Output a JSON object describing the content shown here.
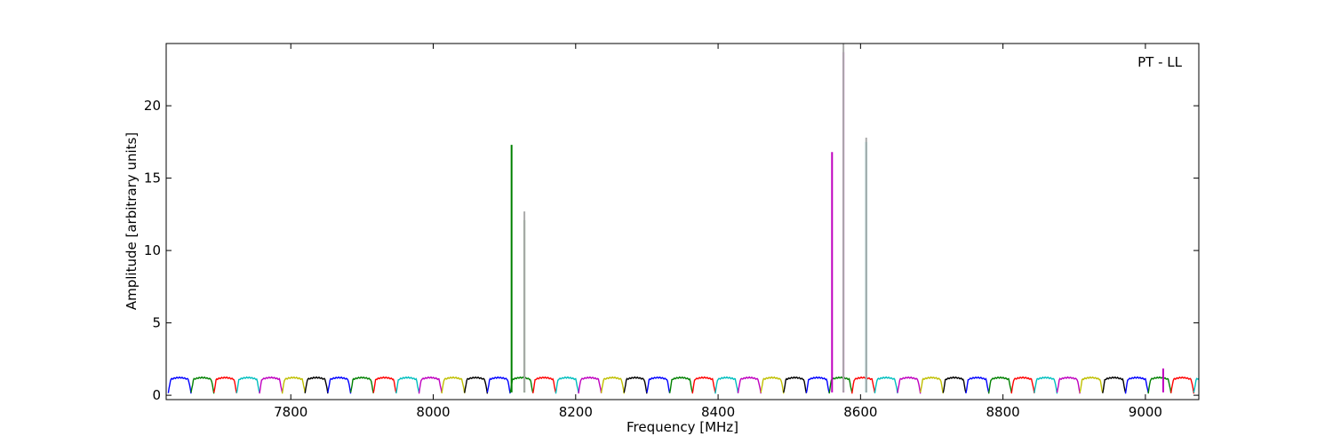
{
  "chart_data": {
    "type": "line",
    "xlabel": "Frequency [MHz]",
    "ylabel": "Amplitude [arbitrary units]",
    "annotation": "PT - LL",
    "annotation_position": "top-right",
    "xlim": [
      7625,
      9075
    ],
    "ylim": [
      -0.3,
      24.3
    ],
    "x_ticks": [
      7800,
      8000,
      8200,
      8400,
      8600,
      8800,
      9000
    ],
    "x_tick_labels": [
      "7800",
      "8000",
      "8200",
      "8400",
      "8600",
      "8800",
      "9000"
    ],
    "y_ticks": [
      0,
      5,
      10,
      15,
      20
    ],
    "y_tick_labels": [
      "0",
      "5",
      "10",
      "15",
      "20"
    ],
    "grid": false,
    "legend": "none",
    "channel_width_mhz": 32,
    "first_channel_start_mhz": 7628,
    "channel_colors": [
      "#0000ff",
      "#008000",
      "#ff0000",
      "#00bfbf",
      "#bf00bf",
      "#bfbf00",
      "#000000"
    ],
    "channel_peak_amplitude": 1.2,
    "channel_edge_dip_amplitude": 0.15,
    "spikes": [
      {
        "x": 8110,
        "y": 17.3,
        "color": "#008000"
      },
      {
        "x": 8128,
        "y": 12.1,
        "color": "#008000"
      },
      {
        "x": 8128,
        "y": 12.7,
        "color": "#aaaaaa"
      },
      {
        "x": 8560,
        "y": 16.8,
        "color": "#bf00bf"
      },
      {
        "x": 8576,
        "y": 23.7,
        "color": "#bf00bf"
      },
      {
        "x": 8576,
        "y": 24.3,
        "color": "#aaaaaa"
      },
      {
        "x": 8608,
        "y": 17.5,
        "color": "#00bfbf"
      },
      {
        "x": 8608,
        "y": 17.8,
        "color": "#aaaaaa"
      },
      {
        "x": 9025,
        "y": 1.85,
        "color": "#bf00bf"
      }
    ]
  }
}
